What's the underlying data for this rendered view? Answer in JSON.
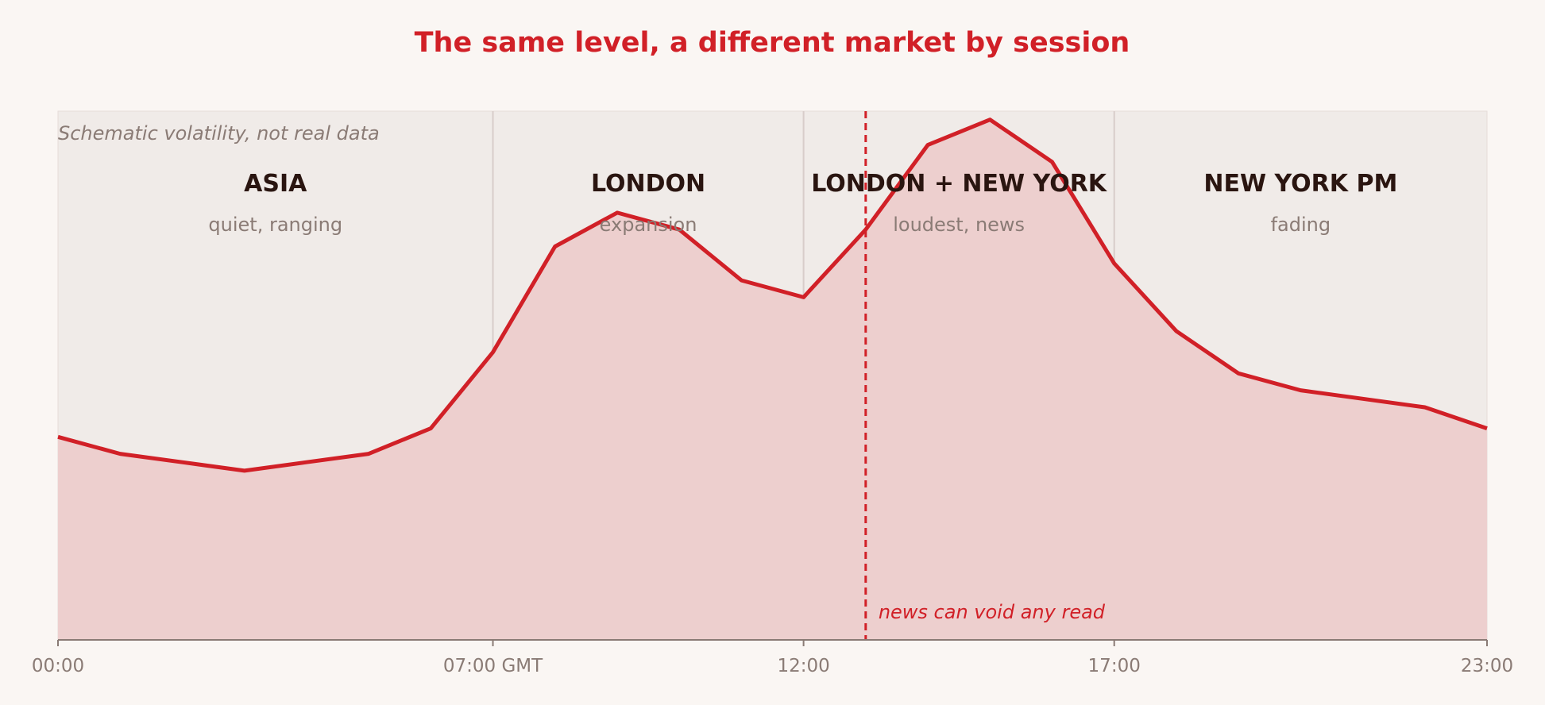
{
  "chart_data": {
    "type": "area",
    "title": "The same level, a different market by session",
    "note": "Schematic volatility, not real data",
    "x_unit": "hour GMT",
    "x": [
      0,
      1,
      2,
      3,
      4,
      5,
      6,
      7,
      8,
      9,
      10,
      11,
      12,
      13,
      14,
      15,
      16,
      17,
      18,
      19,
      20,
      21,
      22,
      23
    ],
    "values": [
      24,
      20,
      18,
      16,
      18,
      20,
      26,
      44,
      69,
      77,
      73,
      61,
      57,
      73,
      93,
      99,
      89,
      65,
      49,
      39,
      35,
      33,
      31,
      26
    ],
    "xlim": [
      0,
      23
    ],
    "ylim": [
      -24,
      101
    ],
    "ticks": [
      {
        "x": 0,
        "label": "00:00"
      },
      {
        "x": 7,
        "label": "07:00 GMT"
      },
      {
        "x": 12,
        "label": "12:00"
      },
      {
        "x": 17,
        "label": "17:00"
      },
      {
        "x": 23,
        "label": "23:00"
      }
    ],
    "sessions": [
      {
        "start": 0,
        "end": 7,
        "name": "ASIA",
        "desc": "quiet, ranging"
      },
      {
        "start": 7,
        "end": 12,
        "name": "LONDON",
        "desc": "expansion"
      },
      {
        "start": 12,
        "end": 17,
        "name": "LONDON + NEW YORK",
        "desc": "loudest, news"
      },
      {
        "start": 17,
        "end": 23,
        "name": "NEW YORK PM",
        "desc": "fading"
      }
    ],
    "event": {
      "x": 13,
      "label": "news can void any read"
    },
    "grid": false,
    "colors": {
      "line": "#d12027",
      "fill": "#edcfce",
      "band": "#f0ebe8",
      "divider": "#d8cdca",
      "title": "#d12027",
      "session_name": "#2a1510",
      "muted": "#8a7b75",
      "axis": "#8a7b75"
    }
  }
}
